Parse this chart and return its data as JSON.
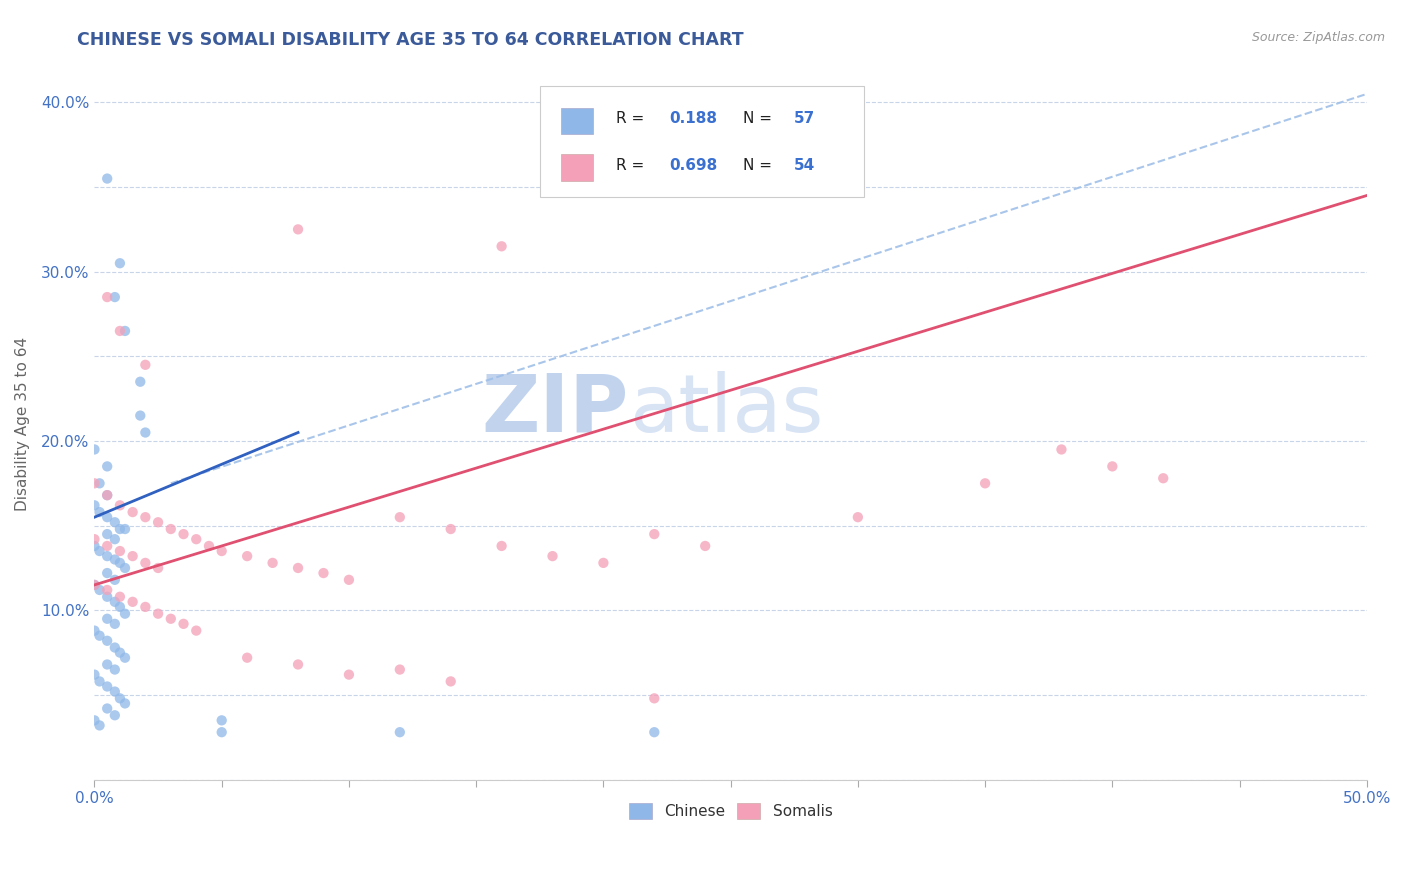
{
  "title": "CHINESE VS SOMALI DISABILITY AGE 35 TO 64 CORRELATION CHART",
  "source_text": "Source: ZipAtlas.com",
  "ylabel": "Disability Age 35 to 64",
  "xlim": [
    0.0,
    0.5
  ],
  "ylim": [
    0.0,
    0.42
  ],
  "chinese_R": 0.188,
  "chinese_N": 57,
  "somali_R": 0.698,
  "somali_N": 54,
  "chinese_color": "#8fb8e8",
  "somali_color": "#f4a0b8",
  "chinese_line_color": "#3060c0",
  "somali_line_color": "#e05070",
  "dash_line_color": "#a0c0e8",
  "background_color": "#ffffff",
  "grid_color": "#c8d4e8",
  "title_color": "#3a5a9a",
  "tick_color": "#4472c4",
  "chinese_line": [
    [
      0.0,
      0.155
    ],
    [
      0.08,
      0.205
    ]
  ],
  "somali_line": [
    [
      0.0,
      0.115
    ],
    [
      0.5,
      0.345
    ]
  ],
  "dash_line": [
    [
      0.03,
      0.175
    ],
    [
      0.5,
      0.405
    ]
  ],
  "chinese_scatter": [
    [
      0.005,
      0.355
    ],
    [
      0.01,
      0.305
    ],
    [
      0.008,
      0.285
    ],
    [
      0.012,
      0.265
    ],
    [
      0.018,
      0.235
    ],
    [
      0.018,
      0.215
    ],
    [
      0.02,
      0.205
    ],
    [
      0.0,
      0.195
    ],
    [
      0.005,
      0.185
    ],
    [
      0.002,
      0.175
    ],
    [
      0.005,
      0.168
    ],
    [
      0.0,
      0.162
    ],
    [
      0.002,
      0.158
    ],
    [
      0.005,
      0.155
    ],
    [
      0.008,
      0.152
    ],
    [
      0.01,
      0.148
    ],
    [
      0.012,
      0.148
    ],
    [
      0.005,
      0.145
    ],
    [
      0.008,
      0.142
    ],
    [
      0.0,
      0.138
    ],
    [
      0.002,
      0.135
    ],
    [
      0.005,
      0.132
    ],
    [
      0.008,
      0.13
    ],
    [
      0.01,
      0.128
    ],
    [
      0.012,
      0.125
    ],
    [
      0.005,
      0.122
    ],
    [
      0.008,
      0.118
    ],
    [
      0.0,
      0.115
    ],
    [
      0.002,
      0.112
    ],
    [
      0.005,
      0.108
    ],
    [
      0.008,
      0.105
    ],
    [
      0.01,
      0.102
    ],
    [
      0.012,
      0.098
    ],
    [
      0.005,
      0.095
    ],
    [
      0.008,
      0.092
    ],
    [
      0.0,
      0.088
    ],
    [
      0.002,
      0.085
    ],
    [
      0.005,
      0.082
    ],
    [
      0.008,
      0.078
    ],
    [
      0.01,
      0.075
    ],
    [
      0.012,
      0.072
    ],
    [
      0.005,
      0.068
    ],
    [
      0.008,
      0.065
    ],
    [
      0.0,
      0.062
    ],
    [
      0.002,
      0.058
    ],
    [
      0.005,
      0.055
    ],
    [
      0.008,
      0.052
    ],
    [
      0.01,
      0.048
    ],
    [
      0.012,
      0.045
    ],
    [
      0.005,
      0.042
    ],
    [
      0.008,
      0.038
    ],
    [
      0.0,
      0.035
    ],
    [
      0.002,
      0.032
    ],
    [
      0.05,
      0.035
    ],
    [
      0.05,
      0.028
    ],
    [
      0.12,
      0.028
    ],
    [
      0.22,
      0.028
    ]
  ],
  "somali_scatter": [
    [
      0.005,
      0.285
    ],
    [
      0.01,
      0.265
    ],
    [
      0.02,
      0.245
    ],
    [
      0.08,
      0.325
    ],
    [
      0.16,
      0.315
    ],
    [
      0.0,
      0.175
    ],
    [
      0.005,
      0.168
    ],
    [
      0.01,
      0.162
    ],
    [
      0.015,
      0.158
    ],
    [
      0.02,
      0.155
    ],
    [
      0.025,
      0.152
    ],
    [
      0.03,
      0.148
    ],
    [
      0.035,
      0.145
    ],
    [
      0.04,
      0.142
    ],
    [
      0.045,
      0.138
    ],
    [
      0.05,
      0.135
    ],
    [
      0.06,
      0.132
    ],
    [
      0.07,
      0.128
    ],
    [
      0.08,
      0.125
    ],
    [
      0.09,
      0.122
    ],
    [
      0.1,
      0.118
    ],
    [
      0.0,
      0.142
    ],
    [
      0.005,
      0.138
    ],
    [
      0.01,
      0.135
    ],
    [
      0.015,
      0.132
    ],
    [
      0.02,
      0.128
    ],
    [
      0.025,
      0.125
    ],
    [
      0.0,
      0.115
    ],
    [
      0.005,
      0.112
    ],
    [
      0.01,
      0.108
    ],
    [
      0.015,
      0.105
    ],
    [
      0.02,
      0.102
    ],
    [
      0.025,
      0.098
    ],
    [
      0.03,
      0.095
    ],
    [
      0.035,
      0.092
    ],
    [
      0.04,
      0.088
    ],
    [
      0.12,
      0.155
    ],
    [
      0.14,
      0.148
    ],
    [
      0.16,
      0.138
    ],
    [
      0.18,
      0.132
    ],
    [
      0.2,
      0.128
    ],
    [
      0.22,
      0.145
    ],
    [
      0.24,
      0.138
    ],
    [
      0.3,
      0.155
    ],
    [
      0.35,
      0.175
    ],
    [
      0.38,
      0.195
    ],
    [
      0.4,
      0.185
    ],
    [
      0.42,
      0.178
    ],
    [
      0.22,
      0.048
    ],
    [
      0.12,
      0.065
    ],
    [
      0.14,
      0.058
    ],
    [
      0.1,
      0.062
    ],
    [
      0.08,
      0.068
    ],
    [
      0.06,
      0.072
    ]
  ],
  "watermark_zip_color": "#c8d8f0",
  "watermark_atlas_color": "#d0d8e8"
}
